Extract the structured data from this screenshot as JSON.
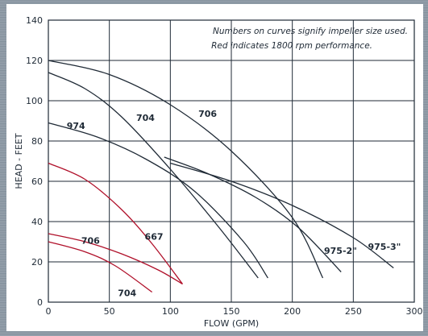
{
  "chart_data": {
    "type": "line",
    "title": "",
    "xlabel": "FLOW (GPM)",
    "ylabel": "HEAD - FEET",
    "xlim": [
      0,
      300
    ],
    "ylim": [
      0,
      140
    ],
    "x_ticks": [
      "0",
      "50",
      "100",
      "150",
      "200",
      "250",
      "300"
    ],
    "y_ticks": [
      "0",
      "20",
      "40",
      "60",
      "80",
      "100",
      "120",
      "140"
    ],
    "grid": true,
    "annotations": [
      "Numbers on curves signify impeller size used.",
      "Red indicates 1800 rpm performance."
    ],
    "colors": {
      "standard": "#1f2a36",
      "rpm1800": "#b0102a"
    },
    "series": [
      {
        "name": "706",
        "color": "standard",
        "points": [
          [
            0,
            120
          ],
          [
            50,
            113
          ],
          [
            100,
            98
          ],
          [
            150,
            75
          ],
          [
            200,
            42
          ],
          [
            225,
            12
          ]
        ]
      },
      {
        "name": "704",
        "color": "standard",
        "points": [
          [
            0,
            114
          ],
          [
            30,
            106
          ],
          [
            60,
            92
          ],
          [
            100,
            66
          ],
          [
            140,
            37
          ],
          [
            172,
            12
          ]
        ]
      },
      {
        "name": "974",
        "color": "standard",
        "points": [
          [
            0,
            89
          ],
          [
            40,
            82
          ],
          [
            80,
            71
          ],
          [
            120,
            55
          ],
          [
            160,
            30
          ],
          [
            180,
            12
          ]
        ]
      },
      {
        "name": "975-2\"",
        "color": "standard",
        "points": [
          [
            95,
            72
          ],
          [
            130,
            64
          ],
          [
            170,
            52
          ],
          [
            205,
            37
          ],
          [
            240,
            15
          ]
        ]
      },
      {
        "name": "975-3\"",
        "color": "standard",
        "points": [
          [
            100,
            69
          ],
          [
            150,
            60
          ],
          [
            200,
            48
          ],
          [
            250,
            32
          ],
          [
            283,
            17
          ]
        ]
      },
      {
        "name": "667",
        "color": "rpm1800",
        "points": [
          [
            0,
            69
          ],
          [
            30,
            61
          ],
          [
            60,
            46
          ],
          [
            85,
            29
          ],
          [
            110,
            9
          ]
        ]
      },
      {
        "name": "706",
        "color": "rpm1800",
        "points": [
          [
            0,
            34
          ],
          [
            30,
            30
          ],
          [
            60,
            24
          ],
          [
            90,
            16
          ],
          [
            110,
            9
          ]
        ]
      },
      {
        "name": "704",
        "color": "rpm1800",
        "points": [
          [
            0,
            30
          ],
          [
            30,
            25
          ],
          [
            55,
            18
          ],
          [
            85,
            5
          ]
        ]
      }
    ],
    "labels": [
      {
        "text": "706",
        "x": 123,
        "y": 92
      },
      {
        "text": "704",
        "x": 72,
        "y": 90
      },
      {
        "text": "974",
        "x": 15,
        "y": 86
      },
      {
        "text": "975-2\"",
        "x": 226,
        "y": 24
      },
      {
        "text": "975-3\"",
        "x": 262,
        "y": 26
      },
      {
        "text": "667",
        "x": 79,
        "y": 31
      },
      {
        "text": "706",
        "x": 27,
        "y": 29
      },
      {
        "text": "704",
        "x": 57,
        "y": 3
      }
    ]
  }
}
